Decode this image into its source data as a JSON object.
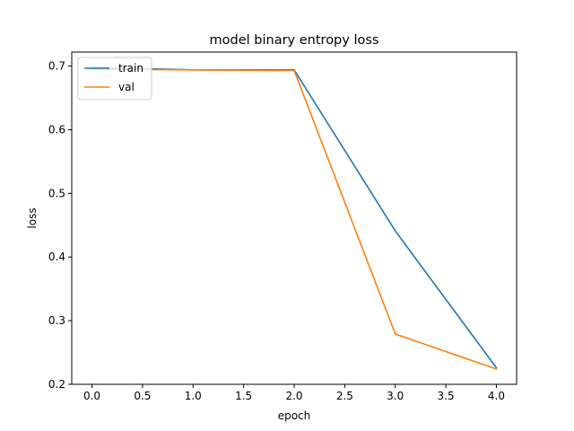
{
  "chart_data": {
    "type": "line",
    "title": "model binary entropy loss",
    "xlabel": "epoch",
    "ylabel": "loss",
    "xlim": [
      -0.2,
      4.2
    ],
    "ylim": [
      0.2,
      0.722
    ],
    "x_ticks": [
      "0.0",
      "0.5",
      "1.0",
      "1.5",
      "2.0",
      "2.5",
      "3.0",
      "3.5",
      "4.0"
    ],
    "y_ticks": [
      "0.2",
      "0.3",
      "0.4",
      "0.5",
      "0.6",
      "0.7"
    ],
    "grid": false,
    "legend_position": "top-left",
    "x": [
      0,
      1,
      2,
      3,
      4
    ],
    "series": [
      {
        "name": "train",
        "color": "#1f77b4",
        "values": [
          0.698,
          0.694,
          0.694,
          0.441,
          0.226
        ]
      },
      {
        "name": "val",
        "color": "#ff7f0e",
        "values": [
          0.695,
          0.694,
          0.693,
          0.279,
          0.224
        ]
      }
    ]
  }
}
